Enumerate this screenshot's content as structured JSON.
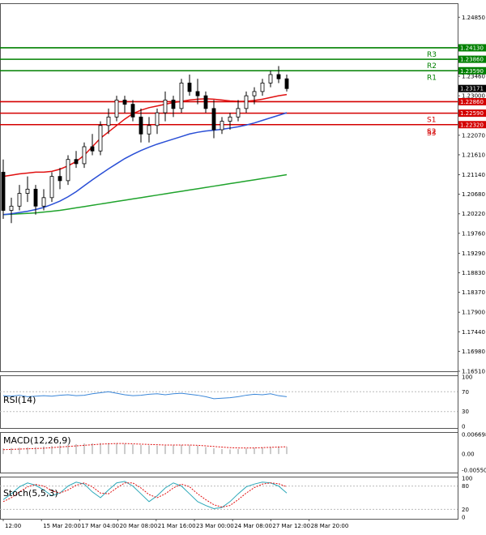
{
  "chart_data": {
    "type": "candlestick",
    "instrument_hint": "GBP/USD",
    "main_panel": {
      "price_ticks": [
        "1.24850",
        "1.24130",
        "1.23860",
        "1.23590",
        "1.23460",
        "1.23000",
        "1.22550",
        "1.22070",
        "1.21610",
        "1.21140",
        "1.20680",
        "1.20220",
        "1.19760",
        "1.19290",
        "1.18830",
        "1.18370",
        "1.17900",
        "1.17440",
        "1.16980",
        "1.16510"
      ],
      "ylim": [
        1.1651,
        1.2518
      ],
      "current_price": "1.23171",
      "levels": [
        {
          "name": "R3",
          "value": 1.2413,
          "label": "1.24130",
          "color": "#008000"
        },
        {
          "name": "R2",
          "value": 1.2386,
          "label": "1.23860",
          "color": "#008000"
        },
        {
          "name": "R1",
          "value": 1.2359,
          "label": "1.23590",
          "color": "#008000"
        },
        {
          "name": "",
          "value": 1.2286,
          "label": "1.22860",
          "color": "#d40000"
        },
        {
          "name": "S1",
          "value": 1.2259,
          "label": "1.22590",
          "color": "#d40000"
        },
        {
          "name": "S2",
          "value": 1.2232,
          "label": "1.22320",
          "color": "#d40000"
        },
        {
          "name": "S3",
          "value": null,
          "label": "",
          "color": "#d40000"
        }
      ],
      "candles": [
        [
          1.212,
          1.215,
          1.201,
          1.203
        ],
        [
          1.203,
          1.206,
          1.2,
          1.204
        ],
        [
          1.204,
          1.209,
          1.203,
          1.207
        ],
        [
          1.207,
          1.211,
          1.205,
          1.208
        ],
        [
          1.208,
          1.209,
          1.202,
          1.204
        ],
        [
          1.204,
          1.208,
          1.203,
          1.206
        ],
        [
          1.206,
          1.212,
          1.205,
          1.211
        ],
        [
          1.211,
          1.213,
          1.208,
          1.21
        ],
        [
          1.21,
          1.216,
          1.209,
          1.215
        ],
        [
          1.215,
          1.217,
          1.213,
          1.214
        ],
        [
          1.214,
          1.219,
          1.213,
          1.218
        ],
        [
          1.218,
          1.221,
          1.216,
          1.217
        ],
        [
          1.217,
          1.224,
          1.216,
          1.223
        ],
        [
          1.223,
          1.227,
          1.221,
          1.225
        ],
        [
          1.225,
          1.23,
          1.224,
          1.229
        ],
        [
          1.229,
          1.23,
          1.226,
          1.228
        ],
        [
          1.228,
          1.229,
          1.224,
          1.225
        ],
        [
          1.225,
          1.227,
          1.219,
          1.221
        ],
        [
          1.221,
          1.225,
          1.219,
          1.223
        ],
        [
          1.223,
          1.227,
          1.221,
          1.226
        ],
        [
          1.226,
          1.231,
          1.224,
          1.229
        ],
        [
          1.229,
          1.23,
          1.225,
          1.227
        ],
        [
          1.227,
          1.234,
          1.226,
          1.233
        ],
        [
          1.233,
          1.235,
          1.23,
          1.231
        ],
        [
          1.231,
          1.234,
          1.228,
          1.23
        ],
        [
          1.23,
          1.231,
          1.226,
          1.227
        ],
        [
          1.227,
          1.229,
          1.22,
          1.222
        ],
        [
          1.222,
          1.225,
          1.221,
          1.224
        ],
        [
          1.224,
          1.226,
          1.222,
          1.225
        ],
        [
          1.225,
          1.229,
          1.224,
          1.227
        ],
        [
          1.227,
          1.231,
          1.226,
          1.23
        ],
        [
          1.23,
          1.232,
          1.228,
          1.231
        ],
        [
          1.231,
          1.234,
          1.23,
          1.233
        ],
        [
          1.233,
          1.236,
          1.232,
          1.235
        ],
        [
          1.235,
          1.237,
          1.233,
          1.234
        ],
        [
          1.234,
          1.235,
          1.231,
          1.2317
        ]
      ],
      "ma_red": [
        1.211,
        1.2113,
        1.2116,
        1.2118,
        1.212,
        1.212,
        1.2122,
        1.2127,
        1.2135,
        1.2145,
        1.216,
        1.218,
        1.22,
        1.2215,
        1.223,
        1.2245,
        1.2258,
        1.2266,
        1.2272,
        1.2276,
        1.228,
        1.2284,
        1.2287,
        1.229,
        1.2292,
        1.2293,
        1.2292,
        1.229,
        1.2288,
        1.2287,
        1.2287,
        1.2289,
        1.2292,
        1.2296,
        1.23,
        1.2303
      ],
      "ma_blue": [
        1.202,
        1.2022,
        1.2025,
        1.2028,
        1.2032,
        1.2037,
        1.2044,
        1.2052,
        1.2062,
        1.2074,
        1.2088,
        1.2102,
        1.2115,
        1.2128,
        1.214,
        1.2152,
        1.2162,
        1.2171,
        1.2179,
        1.2186,
        1.2192,
        1.2198,
        1.2204,
        1.221,
        1.2214,
        1.2217,
        1.2219,
        1.2221,
        1.2224,
        1.2227,
        1.2231,
        1.2236,
        1.2242,
        1.2248,
        1.2254,
        1.226
      ],
      "ma_green": [
        1.202,
        1.2021,
        1.2022,
        1.2023,
        1.2024,
        1.2026,
        1.2028,
        1.203,
        1.2033,
        1.2036,
        1.2039,
        1.2042,
        1.2045,
        1.2048,
        1.2051,
        1.2054,
        1.2057,
        1.206,
        1.2063,
        1.2066,
        1.2069,
        1.2072,
        1.2075,
        1.2078,
        1.2081,
        1.2084,
        1.2087,
        1.209,
        1.2093,
        1.2096,
        1.2099,
        1.2102,
        1.2105,
        1.2108,
        1.2111,
        1.2114
      ]
    },
    "x_labels": [
      "12:00",
      "15 Mar 20:00",
      "17 Mar 04:00",
      "20 Mar 08:00",
      "21 Mar 16:00",
      "23 Mar 00:00",
      "24 Mar 08:00",
      "27 Mar 12:00",
      "28 Mar 20:00"
    ],
    "rsi": {
      "label": "RSI(14)",
      "ticks": [
        "100",
        "70",
        "30",
        "0"
      ],
      "values": [
        62,
        61,
        63,
        60,
        61,
        62,
        61,
        63,
        64,
        62,
        63,
        66,
        68,
        70,
        67,
        64,
        62,
        63,
        65,
        66,
        64,
        66,
        67,
        65,
        63,
        60,
        56,
        57,
        58,
        60,
        63,
        65,
        64,
        66,
        62,
        60
      ]
    },
    "macd": {
      "label": "MACD(12,26,9)",
      "ticks": [
        "0.006698",
        "0.00",
        "-0.005501"
      ],
      "hist": [
        0.002,
        0.0021,
        0.0022,
        0.0023,
        0.0024,
        0.0026,
        0.0028,
        0.003,
        0.0032,
        0.0034,
        0.0036,
        0.0037,
        0.0038,
        0.0038,
        0.0037,
        0.0035,
        0.0033,
        0.0031,
        0.003,
        0.0029,
        0.0029,
        0.003,
        0.0031,
        0.003,
        0.0028,
        0.0024,
        0.002,
        0.0017,
        0.0016,
        0.0017,
        0.0019,
        0.0021,
        0.0023,
        0.0025,
        0.0026,
        0.0025
      ],
      "signal": [
        0.0015,
        0.0016,
        0.0017,
        0.0018,
        0.0019,
        0.002,
        0.0022,
        0.0024,
        0.0026,
        0.0028,
        0.003,
        0.0032,
        0.0034,
        0.0035,
        0.0036,
        0.0036,
        0.0035,
        0.0034,
        0.0033,
        0.0032,
        0.0031,
        0.0031,
        0.0031,
        0.0031,
        0.003,
        0.0028,
        0.0026,
        0.0024,
        0.0022,
        0.0021,
        0.0021,
        0.0021,
        0.0022,
        0.0023,
        0.0024,
        0.0025
      ]
    },
    "stoch": {
      "label": "Stoch(5,5,3)",
      "ticks": [
        "100",
        "80",
        "20",
        "0"
      ],
      "k": [
        45,
        60,
        78,
        88,
        82,
        70,
        55,
        62,
        80,
        90,
        85,
        65,
        50,
        70,
        88,
        92,
        80,
        60,
        40,
        55,
        75,
        88,
        80,
        60,
        40,
        30,
        22,
        25,
        40,
        60,
        78,
        85,
        90,
        88,
        80,
        62
      ],
      "d": [
        40,
        50,
        65,
        78,
        84,
        80,
        68,
        62,
        70,
        82,
        88,
        78,
        62,
        60,
        75,
        88,
        88,
        75,
        58,
        50,
        60,
        75,
        85,
        78,
        60,
        45,
        32,
        26,
        30,
        45,
        62,
        76,
        85,
        88,
        86,
        78
      ]
    }
  }
}
